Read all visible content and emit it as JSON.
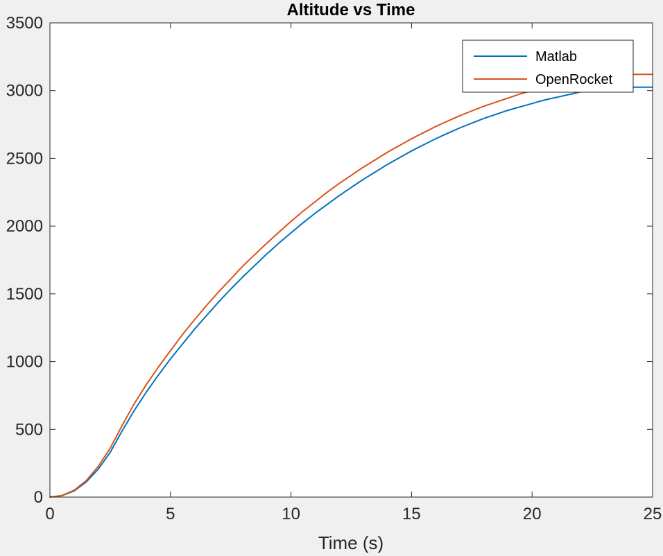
{
  "chart_data": {
    "type": "line",
    "title": "Altitude vs Time",
    "xlabel": "Time (s)",
    "ylabel": "",
    "xlim": [
      0,
      25
    ],
    "ylim": [
      0,
      3500
    ],
    "xticks": [
      0,
      5,
      10,
      15,
      20,
      25
    ],
    "yticks": [
      0,
      500,
      1000,
      1500,
      2000,
      2500,
      3000,
      3500
    ],
    "grid": false,
    "legend_position": "top-right",
    "series": [
      {
        "name": "Matlab",
        "color": "#0072bd",
        "x": [
          0,
          0.5,
          1,
          1.5,
          2,
          2.5,
          3,
          3.5,
          4,
          4.5,
          5,
          5.5,
          6,
          6.5,
          7,
          7.5,
          8,
          8.5,
          9,
          9.5,
          10,
          10.5,
          11,
          11.5,
          12,
          12.5,
          13,
          13.5,
          14,
          14.5,
          15,
          15.5,
          16,
          16.5,
          17,
          17.5,
          18,
          18.5,
          19,
          19.5,
          20,
          20.5,
          21,
          21.5,
          22,
          22.5,
          23,
          23.5,
          24,
          24.5,
          25
        ],
        "y": [
          0,
          10,
          45,
          110,
          205,
          330,
          490,
          640,
          775,
          900,
          1020,
          1130,
          1240,
          1340,
          1440,
          1535,
          1625,
          1710,
          1795,
          1875,
          1950,
          2025,
          2095,
          2160,
          2225,
          2285,
          2345,
          2400,
          2455,
          2505,
          2555,
          2600,
          2645,
          2685,
          2725,
          2760,
          2795,
          2825,
          2855,
          2880,
          2905,
          2930,
          2950,
          2970,
          2990,
          3005,
          3020,
          3025,
          3025,
          3025,
          3025
        ]
      },
      {
        "name": "OpenRocket",
        "color": "#d95319",
        "x": [
          0,
          0.5,
          1,
          1.5,
          2,
          2.5,
          3,
          3.5,
          4,
          4.5,
          5,
          5.5,
          6,
          6.5,
          7,
          7.5,
          8,
          8.5,
          9,
          9.5,
          10,
          10.5,
          11,
          11.5,
          12,
          12.5,
          13,
          13.5,
          14,
          14.5,
          15,
          15.5,
          16,
          16.5,
          17,
          17.5,
          18,
          18.5,
          19,
          19.5,
          20,
          20.5,
          21,
          21.5,
          22,
          22.5,
          23,
          23.5,
          24,
          24.5,
          25
        ],
        "y": [
          0,
          12,
          50,
          120,
          225,
          360,
          530,
          690,
          830,
          960,
          1080,
          1200,
          1310,
          1415,
          1515,
          1610,
          1705,
          1790,
          1875,
          1955,
          2035,
          2110,
          2180,
          2250,
          2315,
          2375,
          2435,
          2490,
          2545,
          2595,
          2645,
          2690,
          2735,
          2775,
          2815,
          2850,
          2885,
          2915,
          2945,
          2975,
          3000,
          3025,
          3045,
          3065,
          3085,
          3100,
          3115,
          3120,
          3120,
          3120,
          3120
        ]
      }
    ]
  }
}
